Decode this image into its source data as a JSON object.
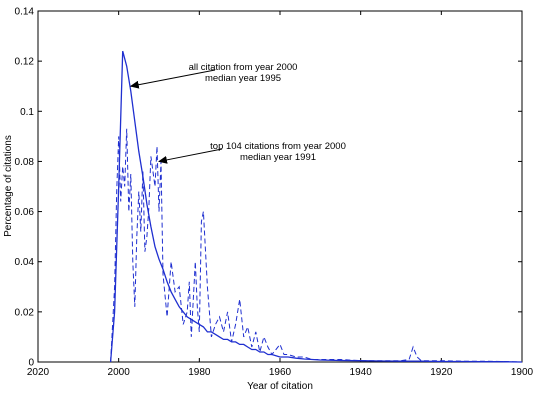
{
  "chart_data": {
    "type": "line",
    "xlabel": "Year of citation",
    "ylabel": "Percentage of citations",
    "x_reversed": true,
    "xlim": [
      2020,
      1900
    ],
    "ylim": [
      0,
      0.14
    ],
    "x_ticks": [
      "2020",
      "2000",
      "1980",
      "1960",
      "1940",
      "1920",
      "1900"
    ],
    "y_ticks": [
      "0",
      "0.02",
      "0.04",
      "0.06",
      "0.08",
      "0.1",
      "0.12",
      "0.14"
    ],
    "grid": false,
    "line_color": "#1f2fd0",
    "series": [
      {
        "style": "solid",
        "x": [
          2002,
          2001,
          2000,
          1999,
          1998,
          1997,
          1996,
          1995,
          1994,
          1993,
          1992,
          1991,
          1990,
          1989,
          1988,
          1987,
          1986,
          1985,
          1984,
          1983,
          1982,
          1981,
          1980,
          1979,
          1978,
          1977,
          1976,
          1975,
          1974,
          1973,
          1972,
          1971,
          1970,
          1969,
          1968,
          1967,
          1966,
          1965,
          1964,
          1963,
          1962,
          1960,
          1958,
          1956,
          1954,
          1952,
          1950,
          1945,
          1940,
          1935,
          1930,
          1925,
          1920,
          1915,
          1910,
          1905,
          1900
        ],
        "y": [
          0,
          0.02,
          0.07,
          0.124,
          0.118,
          0.108,
          0.096,
          0.084,
          0.074,
          0.063,
          0.054,
          0.046,
          0.041,
          0.037,
          0.032,
          0.028,
          0.025,
          0.022,
          0.02,
          0.018,
          0.017,
          0.016,
          0.015,
          0.014,
          0.012,
          0.012,
          0.011,
          0.01,
          0.009,
          0.009,
          0.008,
          0.008,
          0.007,
          0.007,
          0.006,
          0.005,
          0.005,
          0.004,
          0.004,
          0.003,
          0.003,
          0.002,
          0.002,
          0.0015,
          0.0012,
          0.001,
          0.0008,
          0.0006,
          0.0005,
          0.0004,
          0.0003,
          0.0003,
          0.0002,
          0.0002,
          0.0001,
          0.0001,
          0
        ]
      },
      {
        "style": "dashed",
        "x": [
          2002,
          2001,
          2000.5,
          2000,
          1999.5,
          1999,
          1998.5,
          1998,
          1997.5,
          1997,
          1996.5,
          1996,
          1995.5,
          1995,
          1994.5,
          1994,
          1993.5,
          1993,
          1992.5,
          1992,
          1991,
          1990.5,
          1990,
          1989.5,
          1989,
          1988,
          1987,
          1986,
          1985,
          1984,
          1983,
          1982.5,
          1982,
          1981,
          1980.5,
          1980,
          1979.5,
          1979,
          1978,
          1977,
          1976,
          1975,
          1974,
          1973,
          1972,
          1971,
          1970,
          1969,
          1968,
          1967,
          1966,
          1965,
          1964,
          1963,
          1962,
          1961,
          1960,
          1959,
          1958,
          1956,
          1954,
          1952,
          1950,
          1945,
          1940,
          1935,
          1930,
          1928,
          1927,
          1926,
          1925,
          1920,
          1915,
          1910,
          1905,
          1900
        ],
        "y": [
          0,
          0.03,
          0.068,
          0.09,
          0.064,
          0.078,
          0.07,
          0.093,
          0.06,
          0.075,
          0.04,
          0.022,
          0.05,
          0.068,
          0.052,
          0.076,
          0.044,
          0.05,
          0.062,
          0.082,
          0.07,
          0.086,
          0.06,
          0.08,
          0.035,
          0.018,
          0.04,
          0.028,
          0.03,
          0.015,
          0.02,
          0.032,
          0.01,
          0.04,
          0.022,
          0.012,
          0.056,
          0.06,
          0.03,
          0.01,
          0.015,
          0.018,
          0.012,
          0.02,
          0.008,
          0.015,
          0.025,
          0.01,
          0.014,
          0.006,
          0.012,
          0.004,
          0.01,
          0.006,
          0.003,
          0.005,
          0.007,
          0.003,
          0.003,
          0.002,
          0.002,
          0.001,
          0.001,
          0.001,
          0.0005,
          0.0005,
          0.0005,
          0.001,
          0.006,
          0.002,
          0.0005,
          0.0005,
          0.0003,
          0.0003,
          0.0002,
          0
        ]
      }
    ],
    "annotations": [
      {
        "lines": [
          "all citation from year 2000",
          "median year 1995"
        ],
        "arrow_to": {
          "x": 1997,
          "y": 0.11
        }
      },
      {
        "lines": [
          "top 104 citations from year 2000",
          "median  year 1991"
        ],
        "arrow_to": {
          "x": 1990,
          "y": 0.08
        }
      }
    ]
  }
}
